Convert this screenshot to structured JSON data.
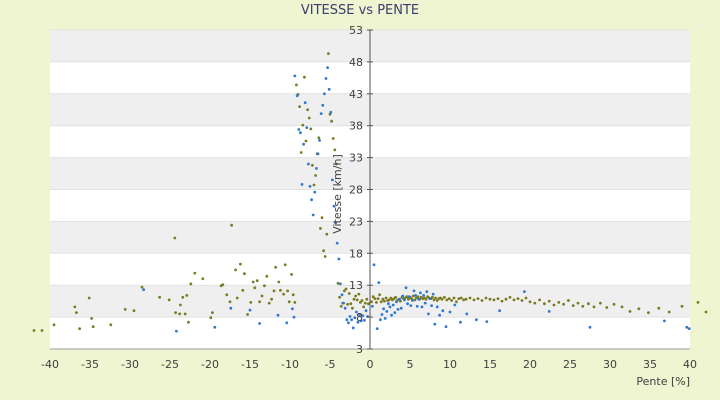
{
  "chart_data": {
    "type": "scatter",
    "title": "VITESSE vs PENTE",
    "xlabel": "Pente [%]",
    "ylabel": "Vitesse [km/h]",
    "xlim": [
      -40,
      40
    ],
    "ylim": [
      3,
      53
    ],
    "x_ticks": [
      "-40",
      "-35",
      "-30",
      "-25",
      "-20",
      "-15",
      "-10",
      "-5",
      "0",
      "5",
      "10",
      "15",
      "20",
      "25",
      "30",
      "35",
      "40"
    ],
    "y_ticks": [
      "3",
      "8",
      "13",
      "18",
      "23",
      "28",
      "33",
      "38",
      "43",
      "48",
      "53"
    ],
    "grid": "horizontal bands",
    "legend": "none",
    "colors": {
      "background": "#eef5d0",
      "plot_band_light": "#ffffff",
      "plot_band_dark": "#efefef",
      "series_a": "#7a7a1e",
      "series_b": "#2e78d2",
      "axis": "#555555"
    },
    "series": [
      {
        "color": "#7a7a1e",
        "points": [
          [
            -42,
            5.9
          ],
          [
            -41,
            5.9
          ],
          [
            -39.5,
            6.8
          ],
          [
            -36.9,
            9.6
          ],
          [
            -36.7,
            8.7
          ],
          [
            -36.3,
            6.2
          ],
          [
            -35.1,
            11.0
          ],
          [
            -34.8,
            7.8
          ],
          [
            -34.6,
            6.5
          ],
          [
            -32.4,
            6.8
          ],
          [
            -30.6,
            9.2
          ],
          [
            -29.5,
            9.0
          ],
          [
            -28.5,
            12.7
          ],
          [
            -26.3,
            11.1
          ],
          [
            -25.1,
            10.7
          ],
          [
            -24.4,
            20.4
          ],
          [
            -24.3,
            8.7
          ],
          [
            -23.8,
            8.5
          ],
          [
            -23.7,
            9.9
          ],
          [
            -23.4,
            11.1
          ],
          [
            -23.1,
            8.5
          ],
          [
            -22.9,
            11.4
          ],
          [
            -22.7,
            7.2
          ],
          [
            -22.4,
            13.2
          ],
          [
            -21.9,
            14.9
          ],
          [
            -20.9,
            14.0
          ],
          [
            -19.9,
            7.9
          ],
          [
            -19.7,
            8.7
          ],
          [
            -18.6,
            12.9
          ],
          [
            -18.4,
            13.1
          ],
          [
            -17.9,
            11.5
          ],
          [
            -17.5,
            10.4
          ],
          [
            -17.3,
            22.4
          ],
          [
            -16.8,
            15.4
          ],
          [
            -16.6,
            11.0
          ],
          [
            -16.2,
            16.3
          ],
          [
            -15.9,
            12.2
          ],
          [
            -15.7,
            14.8
          ],
          [
            -15.3,
            8.4
          ],
          [
            -14.9,
            10.3
          ],
          [
            -14.6,
            13.5
          ],
          [
            -14.4,
            12.6
          ],
          [
            -14.1,
            13.7
          ],
          [
            -13.8,
            10.4
          ],
          [
            -13.5,
            11.3
          ],
          [
            -13.2,
            12.9
          ],
          [
            -12.9,
            14.4
          ],
          [
            -12.6,
            10.2
          ],
          [
            -12.3,
            10.8
          ],
          [
            -12.0,
            12.1
          ],
          [
            -11.8,
            15.8
          ],
          [
            -11.4,
            13.5
          ],
          [
            -11.2,
            12.2
          ],
          [
            -10.8,
            11.6
          ],
          [
            -10.6,
            16.2
          ],
          [
            -10.3,
            12.1
          ],
          [
            -10.1,
            10.4
          ],
          [
            -9.8,
            14.7
          ],
          [
            -9.6,
            11.5
          ],
          [
            -9.4,
            10.3
          ],
          [
            -9.2,
            44.4
          ],
          [
            -9.0,
            42.9
          ],
          [
            -8.8,
            41.0
          ],
          [
            -8.6,
            33.8
          ],
          [
            -8.4,
            38.1
          ],
          [
            -8.2,
            45.6
          ],
          [
            -8.0,
            35.6
          ],
          [
            -7.8,
            40.5
          ],
          [
            -7.6,
            39.2
          ],
          [
            -7.4,
            37.5
          ],
          [
            -7.2,
            31.8
          ],
          [
            -7.0,
            28.7
          ],
          [
            -6.8,
            30.2
          ],
          [
            -6.6,
            33.6
          ],
          [
            -6.4,
            36.1
          ],
          [
            -6.2,
            21.9
          ],
          [
            -6.0,
            23.6
          ],
          [
            -5.8,
            18.4
          ],
          [
            -5.6,
            17.5
          ],
          [
            -5.4,
            21.0
          ],
          [
            -5.2,
            49.3
          ],
          [
            -5.0,
            39.8
          ],
          [
            -4.8,
            38.7
          ],
          [
            -4.6,
            36.0
          ],
          [
            -4.4,
            34.2
          ],
          [
            -4.2,
            32.0
          ],
          [
            -4.0,
            13.3
          ],
          [
            -3.8,
            11.1
          ],
          [
            -3.6,
            9.7
          ],
          [
            -3.4,
            10.2
          ],
          [
            -3.2,
            12.1
          ],
          [
            -3.0,
            12.4
          ],
          [
            -2.8,
            10.0
          ],
          [
            -2.6,
            11.7
          ],
          [
            -2.4,
            10.1
          ],
          [
            -2.2,
            9.4
          ],
          [
            -2.0,
            10.8
          ],
          [
            -1.8,
            11.3
          ],
          [
            -1.6,
            10.7
          ],
          [
            -1.4,
            11.6
          ],
          [
            -1.2,
            10.3
          ],
          [
            -1.0,
            10.6
          ],
          [
            -0.8,
            9.6
          ],
          [
            -0.6,
            10.2
          ],
          [
            -0.4,
            10.8
          ],
          [
            -0.2,
            10.1
          ],
          [
            0.2,
            10.4
          ],
          [
            0.4,
            11.2
          ],
          [
            0.6,
            10.9
          ],
          [
            0.8,
            10.3
          ],
          [
            1.0,
            10.9
          ],
          [
            1.2,
            11.5
          ],
          [
            1.4,
            10.4
          ],
          [
            1.6,
            10.8
          ],
          [
            1.8,
            10.5
          ],
          [
            2.0,
            11.0
          ],
          [
            2.2,
            10.6
          ],
          [
            2.4,
            10.7
          ],
          [
            2.6,
            11.0
          ],
          [
            2.8,
            10.7
          ],
          [
            3.0,
            10.9
          ],
          [
            3.2,
            11.1
          ],
          [
            3.4,
            10.6
          ],
          [
            3.6,
            10.8
          ],
          [
            3.8,
            10.5
          ],
          [
            4.0,
            11.1
          ],
          [
            4.2,
            10.9
          ],
          [
            4.4,
            11.0
          ],
          [
            4.6,
            11.2
          ],
          [
            4.8,
            10.8
          ],
          [
            5.0,
            11.1
          ],
          [
            5.2,
            10.9
          ],
          [
            5.4,
            11.3
          ],
          [
            5.6,
            10.7
          ],
          [
            5.8,
            11.0
          ],
          [
            6.0,
            11.2
          ],
          [
            6.2,
            10.8
          ],
          [
            6.4,
            11.1
          ],
          [
            6.6,
            10.9
          ],
          [
            6.8,
            11.0
          ],
          [
            7.0,
            10.8
          ],
          [
            7.2,
            11.2
          ],
          [
            7.4,
            11.0
          ],
          [
            7.6,
            10.9
          ],
          [
            7.8,
            11.1
          ],
          [
            8.0,
            10.7
          ],
          [
            8.2,
            11.0
          ],
          [
            8.4,
            10.6
          ],
          [
            8.6,
            10.9
          ],
          [
            8.8,
            11.0
          ],
          [
            9.0,
            10.8
          ],
          [
            9.3,
            11.1
          ],
          [
            9.6,
            10.7
          ],
          [
            9.9,
            10.9
          ],
          [
            10.2,
            10.6
          ],
          [
            10.5,
            11.0
          ],
          [
            10.8,
            10.4
          ],
          [
            11.1,
            10.9
          ],
          [
            11.4,
            11.0
          ],
          [
            11.7,
            10.7
          ],
          [
            12.0,
            10.8
          ],
          [
            12.5,
            11.0
          ],
          [
            13.0,
            10.7
          ],
          [
            13.5,
            10.9
          ],
          [
            14.0,
            10.6
          ],
          [
            14.5,
            11.0
          ],
          [
            15.0,
            10.8
          ],
          [
            15.5,
            10.7
          ],
          [
            16.0,
            10.9
          ],
          [
            16.5,
            10.5
          ],
          [
            17.0,
            10.8
          ],
          [
            17.5,
            11.1
          ],
          [
            18.0,
            10.7
          ],
          [
            18.5,
            10.9
          ],
          [
            19.0,
            10.6
          ],
          [
            19.5,
            11.0
          ],
          [
            20.0,
            10.4
          ],
          [
            20.6,
            10.2
          ],
          [
            21.2,
            10.7
          ],
          [
            21.8,
            10.1
          ],
          [
            22.4,
            10.5
          ],
          [
            23.0,
            9.9
          ],
          [
            23.6,
            10.3
          ],
          [
            24.2,
            10.0
          ],
          [
            24.8,
            10.6
          ],
          [
            25.4,
            9.8
          ],
          [
            26.0,
            10.2
          ],
          [
            26.6,
            9.7
          ],
          [
            27.3,
            10.1
          ],
          [
            28.0,
            9.6
          ],
          [
            28.8,
            10.2
          ],
          [
            29.6,
            9.5
          ],
          [
            30.5,
            10.0
          ],
          [
            31.5,
            9.6
          ],
          [
            32.5,
            8.9
          ],
          [
            33.6,
            9.3
          ],
          [
            34.8,
            8.7
          ],
          [
            36.1,
            9.4
          ],
          [
            37.4,
            8.8
          ],
          [
            39.0,
            9.7
          ],
          [
            41.0,
            10.3
          ],
          [
            42.0,
            8.8
          ]
        ]
      },
      {
        "color": "#2e78d2",
        "points": [
          [
            -28.3,
            12.3
          ],
          [
            -24.2,
            5.8
          ],
          [
            -19.4,
            6.4
          ],
          [
            -17.4,
            9.4
          ],
          [
            -15.0,
            9.1
          ],
          [
            -13.8,
            7.0
          ],
          [
            -11.5,
            8.3
          ],
          [
            -10.4,
            7.1
          ],
          [
            -9.7,
            9.3
          ],
          [
            -9.5,
            8.0
          ],
          [
            -9.4,
            45.8
          ],
          [
            -9.1,
            42.7
          ],
          [
            -8.9,
            37.4
          ],
          [
            -8.7,
            36.9
          ],
          [
            -8.5,
            28.8
          ],
          [
            -8.3,
            35.1
          ],
          [
            -8.1,
            41.6
          ],
          [
            -7.9,
            37.7
          ],
          [
            -7.7,
            32.0
          ],
          [
            -7.5,
            28.5
          ],
          [
            -7.3,
            26.4
          ],
          [
            -7.1,
            24.0
          ],
          [
            -6.9,
            27.6
          ],
          [
            -6.7,
            31.3
          ],
          [
            -6.5,
            33.6
          ],
          [
            -6.3,
            35.7
          ],
          [
            -6.1,
            39.9
          ],
          [
            -5.9,
            41.2
          ],
          [
            -5.7,
            43.0
          ],
          [
            -5.5,
            45.4
          ],
          [
            -5.3,
            47.1
          ],
          [
            -5.1,
            43.7
          ],
          [
            -4.9,
            40.1
          ],
          [
            -4.7,
            29.5
          ],
          [
            -4.5,
            25.4
          ],
          [
            -4.3,
            22.8
          ],
          [
            -4.1,
            19.6
          ],
          [
            -3.9,
            17.1
          ],
          [
            -3.7,
            13.2
          ],
          [
            -3.5,
            11.5
          ],
          [
            -3.3,
            10.2
          ],
          [
            -3.1,
            9.4
          ],
          [
            -2.9,
            7.6
          ],
          [
            -2.7,
            7.1
          ],
          [
            -2.5,
            8.1
          ],
          [
            -2.3,
            7.6
          ],
          [
            -2.1,
            6.3
          ],
          [
            -1.9,
            7.9
          ],
          [
            -1.7,
            8.8
          ],
          [
            -1.5,
            7.2
          ],
          [
            -1.3,
            8.4
          ],
          [
            -1.1,
            7.4
          ],
          [
            -0.9,
            8.2
          ],
          [
            -0.7,
            7.5
          ],
          [
            -0.5,
            9.0
          ],
          [
            -0.3,
            8.1
          ],
          [
            0.3,
            9.7
          ],
          [
            0.5,
            16.2
          ],
          [
            0.9,
            6.2
          ],
          [
            1.1,
            13.4
          ],
          [
            1.3,
            7.6
          ],
          [
            1.5,
            8.4
          ],
          [
            1.7,
            9.3
          ],
          [
            1.9,
            7.8
          ],
          [
            2.1,
            8.9
          ],
          [
            2.3,
            10.1
          ],
          [
            2.5,
            9.6
          ],
          [
            2.7,
            8.3
          ],
          [
            2.9,
            9.9
          ],
          [
            3.1,
            8.7
          ],
          [
            3.3,
            10.4
          ],
          [
            3.5,
            9.2
          ],
          [
            3.7,
            10.8
          ],
          [
            3.9,
            9.4
          ],
          [
            4.1,
            11.3
          ],
          [
            4.3,
            10.7
          ],
          [
            4.5,
            12.6
          ],
          [
            4.7,
            10.1
          ],
          [
            4.9,
            11.2
          ],
          [
            5.1,
            9.8
          ],
          [
            5.3,
            10.6
          ],
          [
            5.5,
            12.1
          ],
          [
            5.7,
            11.4
          ],
          [
            5.9,
            9.7
          ],
          [
            6.1,
            10.8
          ],
          [
            6.3,
            11.8
          ],
          [
            6.5,
            9.6
          ],
          [
            6.7,
            11.4
          ],
          [
            6.9,
            10.2
          ],
          [
            7.1,
            12.0
          ],
          [
            7.3,
            8.5
          ],
          [
            7.5,
            10.9
          ],
          [
            7.7,
            9.8
          ],
          [
            7.9,
            11.6
          ],
          [
            8.1,
            6.9
          ],
          [
            8.4,
            9.6
          ],
          [
            8.7,
            8.3
          ],
          [
            9.1,
            9.0
          ],
          [
            9.5,
            6.5
          ],
          [
            10.0,
            8.8
          ],
          [
            10.6,
            9.9
          ],
          [
            11.3,
            7.2
          ],
          [
            12.1,
            8.5
          ],
          [
            13.3,
            7.6
          ],
          [
            14.6,
            7.3
          ],
          [
            16.2,
            9.0
          ],
          [
            19.3,
            12.0
          ],
          [
            22.4,
            8.9
          ],
          [
            27.5,
            6.4
          ],
          [
            36.8,
            7.4
          ],
          [
            39.6,
            6.4
          ],
          [
            39.9,
            6.2
          ]
        ]
      }
    ]
  }
}
